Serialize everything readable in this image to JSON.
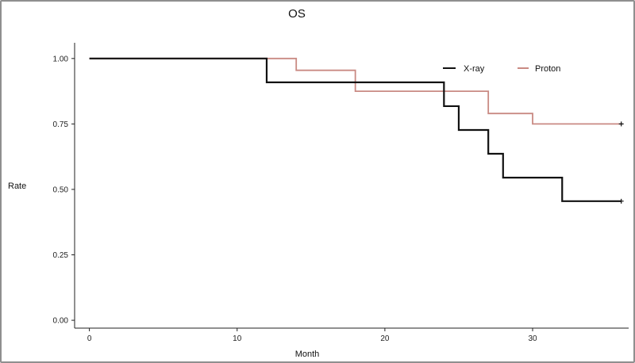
{
  "chart_data": {
    "type": "line",
    "title": "OS",
    "xlabel": "Month",
    "ylabel": "Rate",
    "xlim": [
      -1,
      36.5
    ],
    "ylim": [
      -0.03,
      1.06
    ],
    "x_ticks": [
      0,
      10,
      20,
      30
    ],
    "y_ticks": [
      0.0,
      0.25,
      0.5,
      0.75,
      1.0
    ],
    "x_tick_labels": [
      "0",
      "10",
      "20",
      "30"
    ],
    "y_tick_labels": [
      "0.00",
      "0.25",
      "0.50",
      "0.75",
      "1.00"
    ],
    "grid": false,
    "legend_position": "top-right",
    "step": true,
    "series": [
      {
        "name": "X-ray",
        "color": "#111111",
        "x": [
          0,
          12,
          24,
          25,
          27,
          28,
          32,
          36
        ],
        "y": [
          1.0,
          0.909,
          0.818,
          0.727,
          0.636,
          0.545,
          0.455,
          0.455
        ],
        "censored": [
          36
        ]
      },
      {
        "name": "Proton",
        "color": "#c98a83",
        "x": [
          0,
          14,
          18,
          27,
          30,
          36
        ],
        "y": [
          1.0,
          0.955,
          0.875,
          0.79,
          0.75,
          0.75
        ],
        "censored": [
          36
        ]
      }
    ]
  }
}
